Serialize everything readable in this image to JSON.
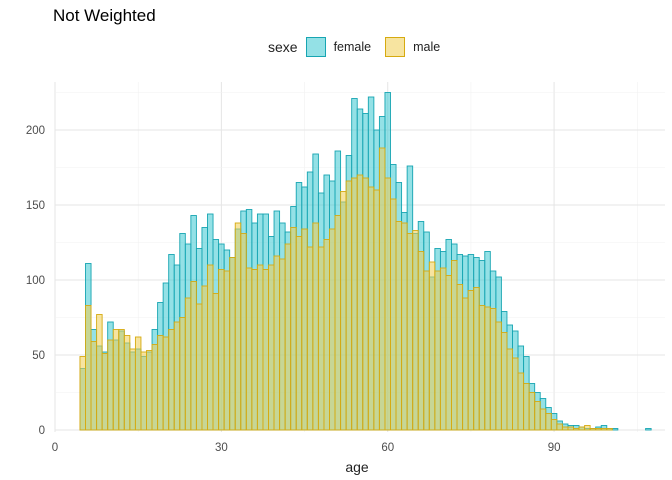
{
  "chart_data": {
    "type": "bar",
    "title": "Not Weighted",
    "xlabel": "age",
    "ylabel": "",
    "legend_title": "sexe",
    "legend_position": "top",
    "grid": true,
    "xlim": [
      0,
      110
    ],
    "ylim": [
      0,
      232
    ],
    "x_ticks": [
      0,
      30,
      60,
      90
    ],
    "y_ticks": [
      0,
      50,
      100,
      150,
      200
    ],
    "series": [
      {
        "name": "female",
        "fill": "#3cc8d2",
        "stroke": "#17a5b2",
        "x": [
          5,
          6,
          7,
          8,
          9,
          10,
          11,
          12,
          13,
          14,
          15,
          16,
          17,
          18,
          19,
          20,
          21,
          22,
          23,
          24,
          25,
          26,
          27,
          28,
          29,
          30,
          31,
          32,
          33,
          34,
          35,
          36,
          37,
          38,
          39,
          40,
          41,
          42,
          43,
          44,
          45,
          46,
          47,
          48,
          49,
          50,
          51,
          52,
          53,
          54,
          55,
          56,
          57,
          58,
          59,
          60,
          61,
          62,
          63,
          64,
          65,
          66,
          67,
          68,
          69,
          70,
          71,
          72,
          73,
          74,
          75,
          76,
          77,
          78,
          79,
          80,
          81,
          82,
          83,
          84,
          85,
          86,
          87,
          88,
          89,
          90,
          91,
          92,
          93,
          94,
          95,
          96,
          97,
          98,
          99,
          100,
          101,
          107
        ],
        "values": [
          41,
          111,
          67,
          56,
          52,
          72,
          60,
          66,
          58,
          52,
          54,
          49,
          52,
          67,
          85,
          98,
          117,
          110,
          131,
          124,
          143,
          121,
          135,
          144,
          127,
          124,
          120,
          115,
          134,
          146,
          147,
          138,
          144,
          144,
          129,
          146,
          138,
          132,
          149,
          165,
          162,
          172,
          184,
          158,
          170,
          166,
          186,
          152,
          183,
          221,
          214,
          211,
          222,
          200,
          209,
          225,
          177,
          165,
          145,
          176,
          131,
          139,
          132,
          102,
          121,
          119,
          127,
          124,
          117,
          116,
          117,
          115,
          113,
          119,
          106,
          102,
          79,
          70,
          66,
          56,
          49,
          31,
          25,
          21,
          15,
          11,
          6,
          4,
          3,
          3,
          2,
          1,
          1,
          2,
          3,
          1,
          1,
          1
        ]
      },
      {
        "name": "male",
        "fill": "#f0cd52",
        "stroke": "#d6aa10",
        "x": [
          5,
          6,
          7,
          8,
          9,
          10,
          11,
          12,
          13,
          14,
          15,
          16,
          17,
          18,
          19,
          20,
          21,
          22,
          23,
          24,
          25,
          26,
          27,
          28,
          29,
          30,
          31,
          32,
          33,
          34,
          35,
          36,
          37,
          38,
          39,
          40,
          41,
          42,
          43,
          44,
          45,
          46,
          47,
          48,
          49,
          50,
          51,
          52,
          53,
          54,
          55,
          56,
          57,
          58,
          59,
          60,
          61,
          62,
          63,
          64,
          65,
          66,
          67,
          68,
          69,
          70,
          71,
          72,
          73,
          74,
          75,
          76,
          77,
          78,
          79,
          80,
          81,
          82,
          83,
          84,
          85,
          86,
          87,
          88,
          89,
          90,
          91,
          92,
          93,
          94,
          95,
          96,
          97,
          98,
          99,
          100
        ],
        "values": [
          49,
          83,
          59,
          77,
          51,
          60,
          67,
          67,
          63,
          54,
          62,
          52,
          53,
          57,
          63,
          62,
          67,
          72,
          75,
          88,
          99,
          84,
          96,
          110,
          91,
          107,
          106,
          115,
          138,
          131,
          108,
          107,
          110,
          107,
          110,
          116,
          114,
          124,
          135,
          129,
          134,
          122,
          138,
          122,
          127,
          134,
          143,
          159,
          166,
          168,
          170,
          168,
          162,
          160,
          188,
          168,
          154,
          139,
          138,
          131,
          133,
          119,
          106,
          112,
          106,
          108,
          103,
          113,
          97,
          88,
          93,
          95,
          83,
          82,
          81,
          72,
          65,
          54,
          48,
          38,
          31,
          25,
          19,
          14,
          11,
          7,
          4,
          2,
          2,
          1,
          2,
          3,
          1,
          1,
          1,
          1
        ]
      }
    ]
  }
}
